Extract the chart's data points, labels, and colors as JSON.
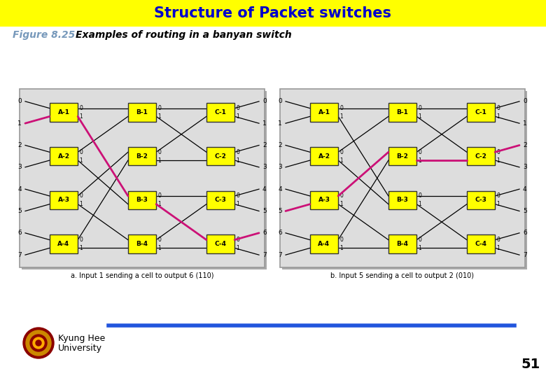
{
  "title": "Structure of Packet switches",
  "title_color": "#0000CC",
  "title_bg": "#FFFF00",
  "fig_label": "Figure 8.25",
  "fig_label_color": "#7799BB",
  "fig_subtitle": "Examples of routing in a banyan switch",
  "fig_subtitle_color": "#000000",
  "caption_a": "a. Input 1 sending a cell to output 6 (110)",
  "caption_b": "b. Input 5 sending a cell to output 2 (010)",
  "page_number": "51",
  "box_color": "#FFFF00",
  "highlight_color": "#CC1177",
  "background_color": "#FFFFFF",
  "diagram_bg": "#EEEEEE",
  "univ_text": "Kyung Hee\nUniversity",
  "bar_color": "#2255DD"
}
